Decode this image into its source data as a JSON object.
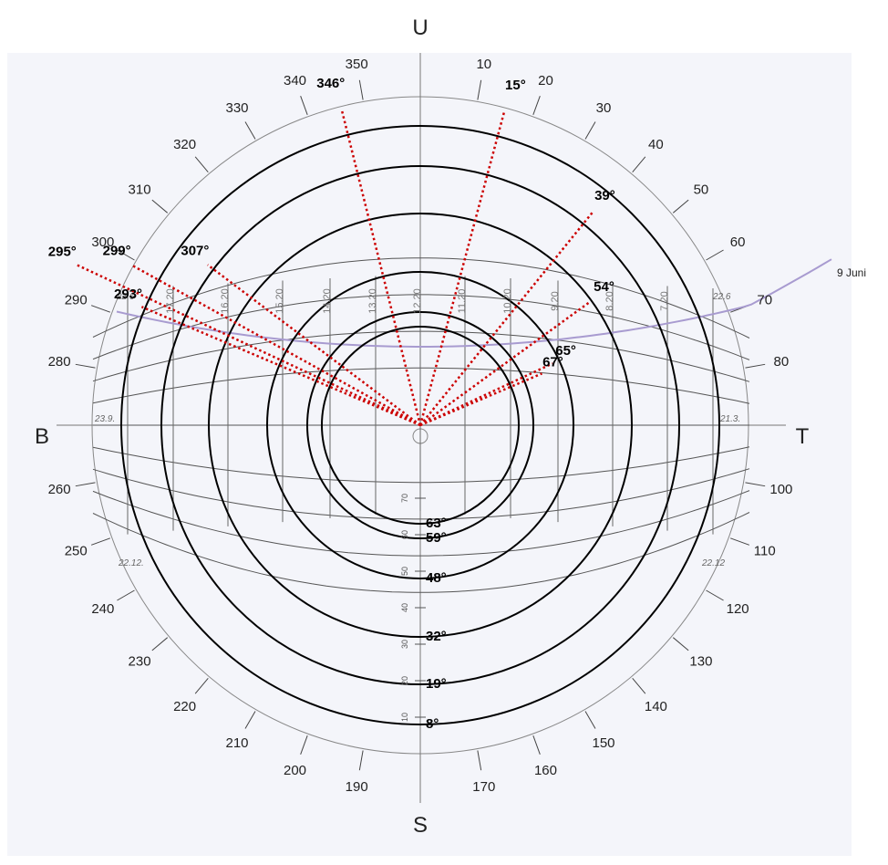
{
  "cardinals": {
    "north": "U",
    "south": "S",
    "west": "B",
    "east": "T"
  },
  "azimuth_scale": [
    10,
    20,
    30,
    40,
    50,
    60,
    70,
    80,
    100,
    110,
    120,
    130,
    140,
    150,
    160,
    170,
    190,
    200,
    210,
    220,
    230,
    240,
    250,
    260,
    280,
    290,
    300,
    310,
    320,
    330,
    340,
    350
  ],
  "elevation_scale": [
    10,
    20,
    30,
    40,
    50,
    60,
    70
  ],
  "hour_labels": [
    "17.20",
    "16.20",
    "15.20",
    "14.20",
    "13.20",
    "12.20",
    "11.20",
    "10.20",
    "9.20",
    "8.20",
    "7.20"
  ],
  "sun_path_markers": [
    "22.6",
    "23.9.",
    "22.12.",
    "22.6",
    "21.3.",
    "22.12"
  ],
  "date_path": {
    "label": "9 Juni",
    "color": "#a89bd0"
  },
  "obstruction_azimuths": [
    {
      "label": "346°",
      "az": 346
    },
    {
      "label": "15°",
      "az": 15
    },
    {
      "label": "39°",
      "az": 39
    },
    {
      "label": "54°",
      "az": 54
    },
    {
      "label": "65°",
      "az": 65
    },
    {
      "label": "67°",
      "az": 67
    },
    {
      "label": "307°",
      "az": 307
    },
    {
      "label": "295°",
      "az": 295
    },
    {
      "label": "299°",
      "az": 299
    },
    {
      "label": "293°",
      "az": 293
    }
  ],
  "elevation_rings": [
    {
      "label": "63°",
      "elev": 63
    },
    {
      "label": "59°",
      "elev": 59
    },
    {
      "label": "48°",
      "elev": 48
    },
    {
      "label": "32°",
      "elev": 32
    },
    {
      "label": "19°",
      "elev": 19
    },
    {
      "label": "8°",
      "elev": 8
    }
  ],
  "colors": {
    "obstruction_line": "#cc0000",
    "ring": "#000000",
    "grid": "#555555",
    "paper": "#f4f5fa"
  }
}
